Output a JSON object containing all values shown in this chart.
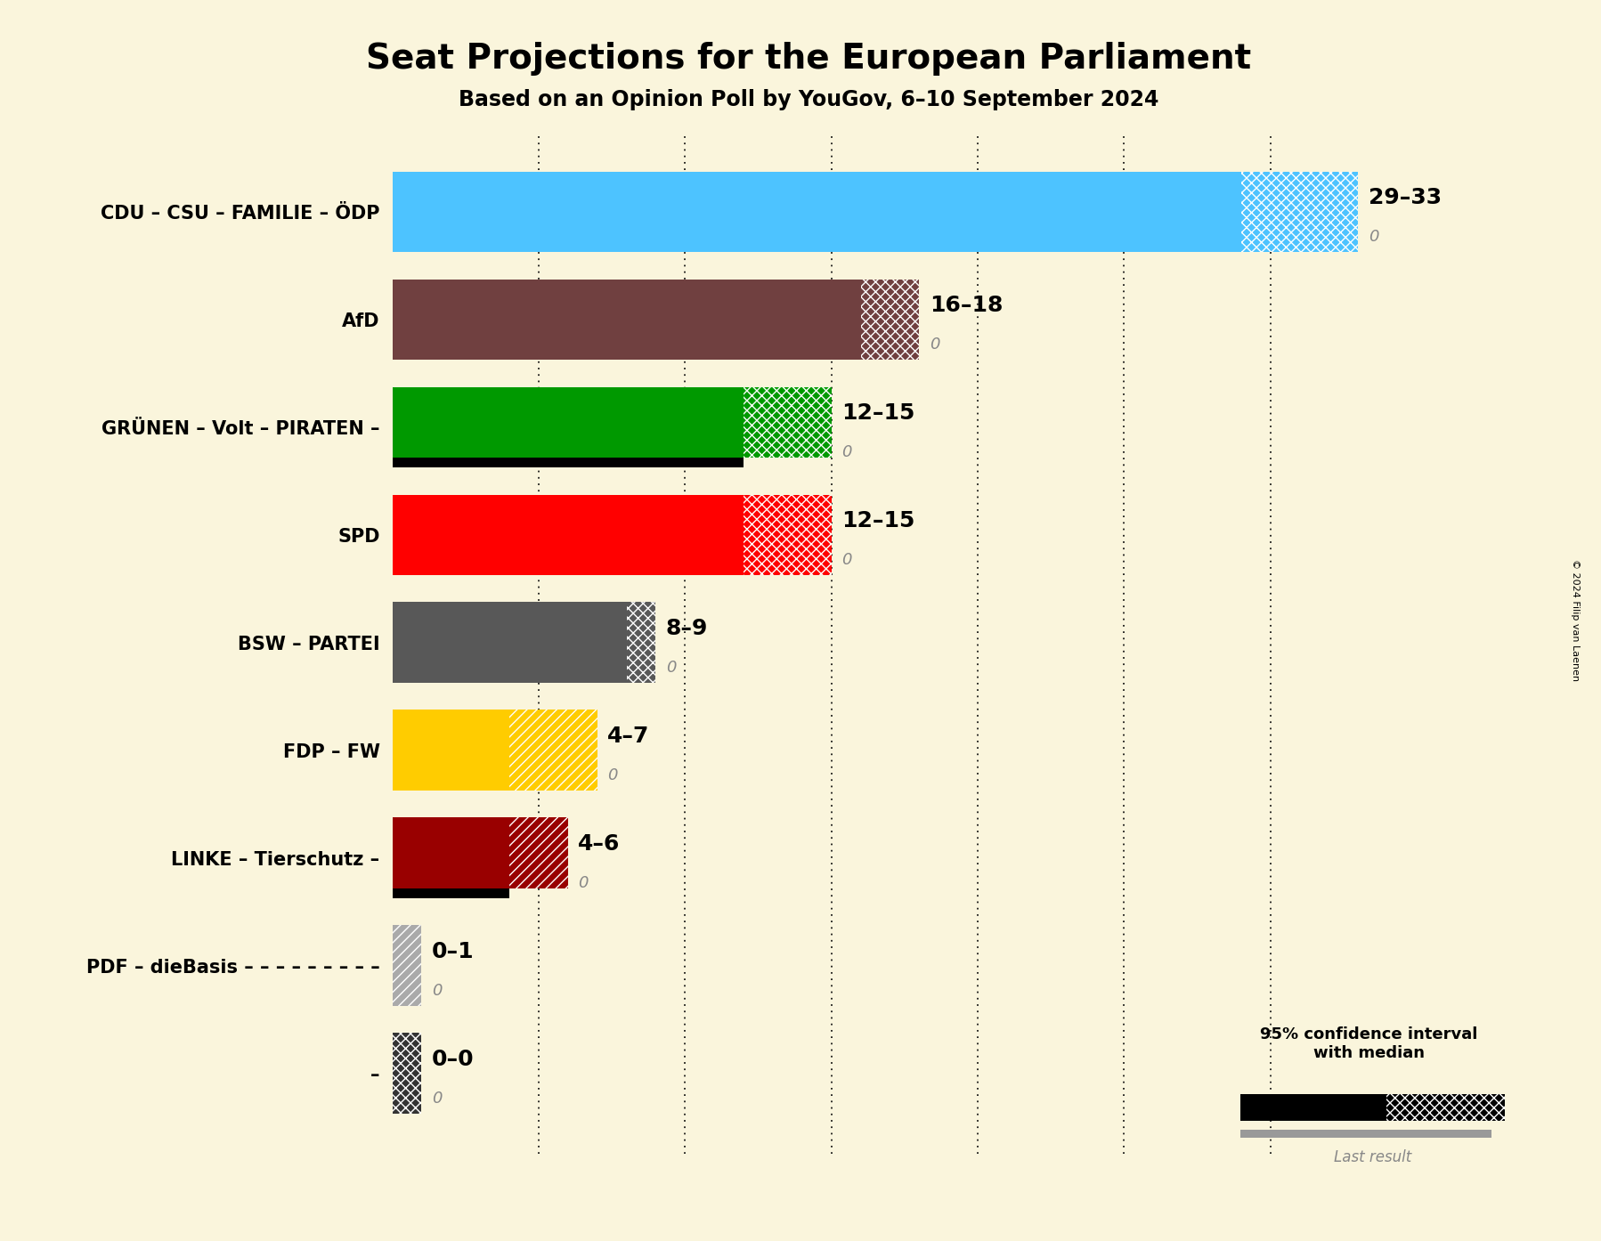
{
  "title": "Seat Projections for the European Parliament",
  "subtitle": "Based on an Opinion Poll by YouGov, 6–10 September 2024",
  "copyright": "© 2024 Filip van Laenen",
  "background_color": "#FAF5DC",
  "parties": [
    {
      "name": "CDU – CSU – FAMILIE – ÖDP",
      "median": 29,
      "ci_high": 33,
      "last_result": 0,
      "color": "#4DC3FF",
      "gradient_color": null,
      "hatch": "xxx",
      "label": "29–33",
      "label_last": "0"
    },
    {
      "name": "AfD",
      "median": 16,
      "ci_high": 18,
      "last_result": 0,
      "color": "#704040",
      "gradient_color": null,
      "hatch": "xxx",
      "label": "16–18",
      "label_last": "0"
    },
    {
      "name": "GRÜNEN – Volt – PIRATEN –",
      "median": 12,
      "ci_high": 15,
      "last_result": 0,
      "color": "#009900",
      "gradient_color": "#000000",
      "hatch": "xxx",
      "label": "12–15",
      "label_last": "0"
    },
    {
      "name": "SPD",
      "median": 12,
      "ci_high": 15,
      "last_result": 0,
      "color": "#FF0000",
      "gradient_color": null,
      "hatch": "xxx",
      "label": "12–15",
      "label_last": "0"
    },
    {
      "name": "BSW – PARTEI",
      "median": 8,
      "ci_high": 9,
      "last_result": 0,
      "color": "#585858",
      "gradient_color": null,
      "hatch": "xxx",
      "label": "8–9",
      "label_last": "0"
    },
    {
      "name": "FDP – FW",
      "median": 4,
      "ci_high": 7,
      "last_result": 0,
      "color": "#FFCC00",
      "gradient_color": null,
      "hatch": "///",
      "label": "4–7",
      "label_last": "0"
    },
    {
      "name": "LINKE – Tierschutz –",
      "median": 4,
      "ci_high": 6,
      "last_result": 0,
      "color": "#990000",
      "gradient_color": "#000000",
      "hatch": "///",
      "label": "4–6",
      "label_last": "0"
    },
    {
      "name": "PDF – dieBasis – – – – – – – – –",
      "median": 0,
      "ci_high": 1,
      "last_result": 0,
      "color": "#AAAAAA",
      "gradient_color": null,
      "hatch": "///",
      "label": "0–1",
      "label_last": "0"
    },
    {
      "name": "–",
      "median": 0,
      "ci_high": 0,
      "last_result": 0,
      "color": "#333333",
      "gradient_color": null,
      "hatch": "xxx",
      "label": "0–0",
      "label_last": "0"
    }
  ],
  "x_max": 35,
  "dotted_lines": [
    5,
    10,
    15,
    20,
    25,
    30
  ],
  "bar_height": 0.75,
  "black_strip_ratio": 0.12
}
